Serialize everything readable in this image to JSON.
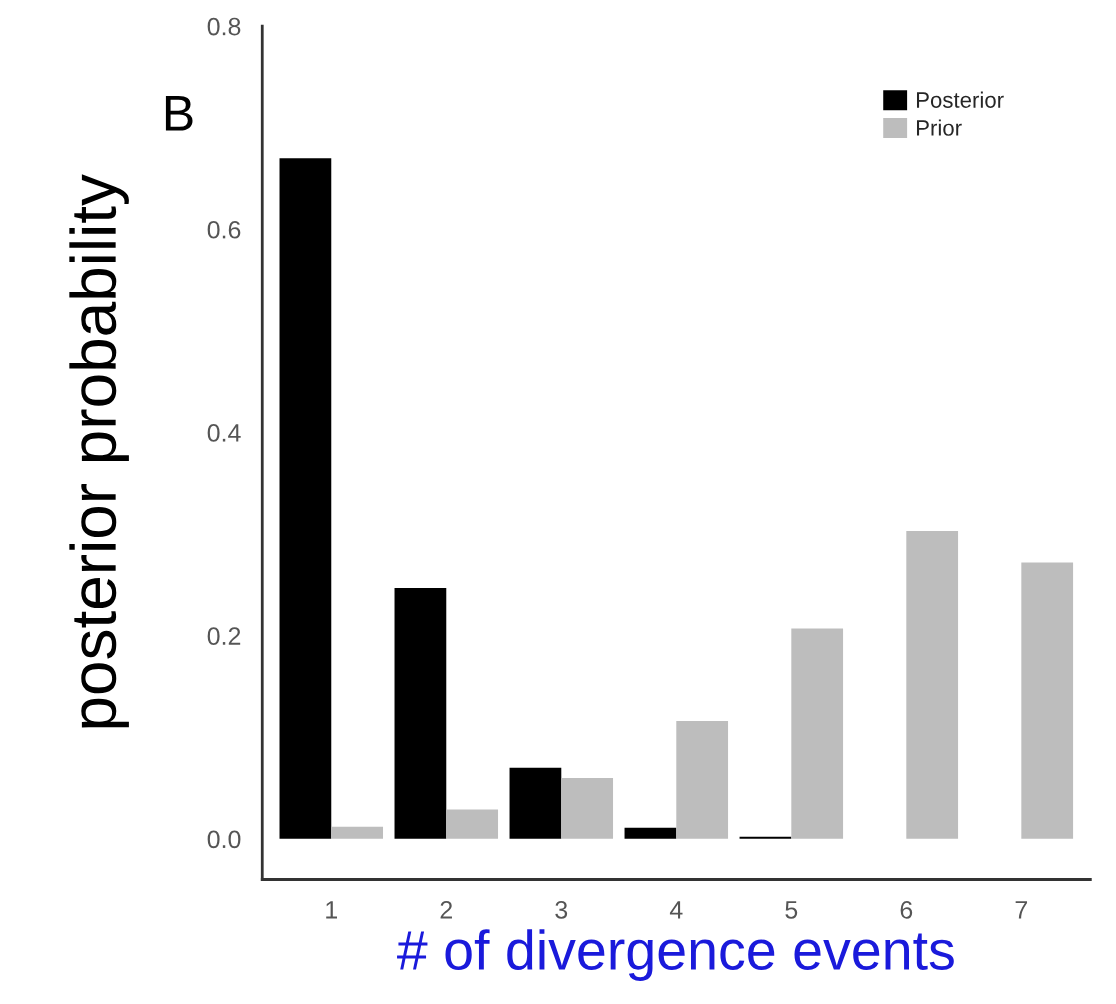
{
  "chart_data": {
    "type": "bar",
    "xlabel": "# of divergence events",
    "ylabel": "posterior probability",
    "annotations": [
      "B"
    ],
    "categories": [
      "1",
      "2",
      "3",
      "4",
      "5",
      "6",
      "7"
    ],
    "series": [
      {
        "name": "Posterior",
        "color": "#000000",
        "values": [
          0.67,
          0.247,
          0.07,
          0.011,
          0.002,
          0,
          0
        ]
      },
      {
        "name": "Prior",
        "color": "#bdbdbd",
        "values": [
          0.012,
          0.029,
          0.06,
          0.116,
          0.207,
          0.303,
          0.272
        ]
      }
    ],
    "ylim": [
      -0.04,
      0.8
    ],
    "yticks": [
      {
        "value": 0,
        "label": "0.0"
      },
      0.2,
      0.4,
      0.6,
      0.8
    ],
    "grid": false,
    "legend": "top right"
  }
}
